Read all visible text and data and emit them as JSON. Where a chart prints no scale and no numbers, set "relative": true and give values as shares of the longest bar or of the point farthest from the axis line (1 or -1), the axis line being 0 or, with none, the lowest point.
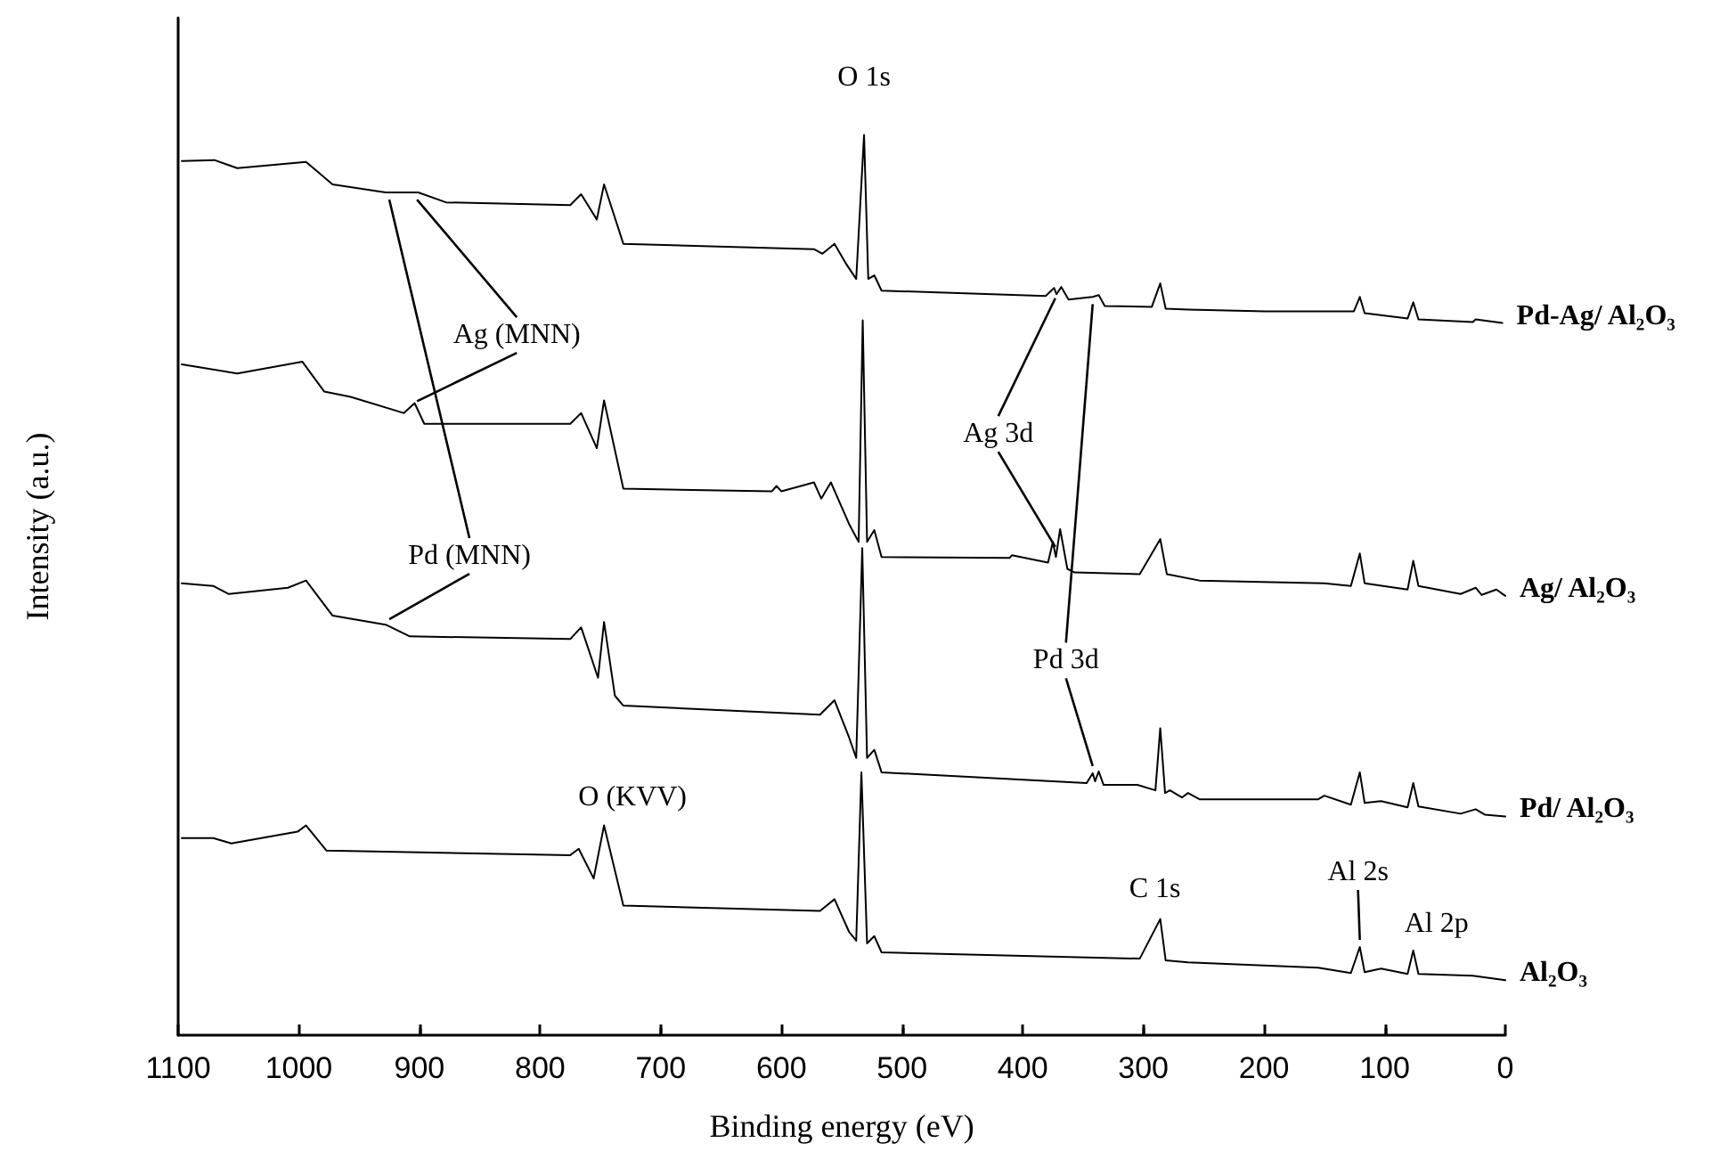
{
  "chart_data": {
    "type": "line",
    "xlabel": "Binding energy (eV)",
    "ylabel": "Intensity (a.u.)",
    "relative": true,
    "xlim": [
      1100,
      0
    ],
    "xticks": [
      1100,
      1000,
      900,
      800,
      700,
      600,
      500,
      400,
      300,
      200,
      100,
      0
    ],
    "grid": false,
    "legend": false,
    "marker": "none",
    "line_style": "solid",
    "series": [
      {
        "name": "Pd-Ag/ Al₂O₃",
        "color": "#000000",
        "x": [
          1097,
          1070,
          1051,
          994,
          972,
          928,
          901,
          878,
          775,
          766,
          753,
          747,
          731,
          573,
          566,
          556,
          546,
          538,
          531.5,
          528,
          523,
          517,
          381,
          374,
          372,
          368,
          362,
          342,
          337,
          332,
          293,
          286,
          281.5,
          263,
          199,
          125.5,
          120.6,
          116.6,
          81,
          76.3,
          72,
          27,
          24.6,
          2.5
        ],
        "values": [
          0.971,
          0.972,
          0.963,
          0.97,
          0.945,
          0.936,
          0.936,
          0.925,
          0.922,
          0.934,
          0.906,
          0.945,
          0.879,
          0.873,
          0.868,
          0.879,
          0.856,
          0.84,
          1.0,
          0.84,
          0.844,
          0.827,
          0.821,
          0.83,
          0.823,
          0.831,
          0.817,
          0.82,
          0.822,
          0.81,
          0.809,
          0.835,
          0.807,
          0.806,
          0.804,
          0.804,
          0.82,
          0.802,
          0.796,
          0.814,
          0.795,
          0.792,
          0.795,
          0.791
        ]
      },
      {
        "name": "Ag/ Al₂O₃",
        "color": "#000000",
        "x": [
          1097,
          1051,
          997,
          979,
          957,
          913,
          904,
          896,
          775,
          766,
          753,
          747,
          731,
          608,
          604,
          600,
          573,
          567,
          559,
          544,
          536,
          532.6,
          529,
          523,
          517,
          411,
          409,
          379,
          375,
          372.5,
          369,
          363,
          357,
          303,
          286,
          280.5,
          253.5,
          150,
          128,
          120.6,
          116.6,
          81,
          76.3,
          72,
          37,
          24.6,
          19.6,
          7.4,
          0
        ],
        "values": [
          0.745,
          0.735,
          0.748,
          0.715,
          0.709,
          0.691,
          0.702,
          0.679,
          0.679,
          0.691,
          0.652,
          0.705,
          0.607,
          0.604,
          0.61,
          0.604,
          0.614,
          0.596,
          0.614,
          0.568,
          0.548,
          0.794,
          0.548,
          0.561,
          0.531,
          0.53,
          0.533,
          0.525,
          0.548,
          0.531,
          0.562,
          0.518,
          0.514,
          0.512,
          0.551,
          0.512,
          0.505,
          0.502,
          0.499,
          0.535,
          0.502,
          0.495,
          0.527,
          0.499,
          0.49,
          0.497,
          0.489,
          0.495,
          0.488
        ]
      },
      {
        "name": "Pd/ Al₂O₃",
        "color": "#000000",
        "x": [
          1097,
          1071,
          1058,
          1009,
          994,
          972,
          928,
          908,
          775,
          766,
          752,
          747,
          738,
          731,
          568,
          556,
          544,
          538,
          533,
          529,
          523,
          517,
          347,
          342,
          340,
          337,
          333,
          305,
          290,
          286,
          282,
          278,
          268,
          263,
          253.5,
          155,
          150,
          128,
          120.6,
          116.6,
          103,
          81,
          76.3,
          72,
          37,
          24.6,
          17,
          0
        ],
        "values": [
          0.502,
          0.499,
          0.49,
          0.497,
          0.505,
          0.466,
          0.456,
          0.443,
          0.44,
          0.453,
          0.397,
          0.459,
          0.377,
          0.366,
          0.356,
          0.372,
          0.331,
          0.308,
          0.541,
          0.308,
          0.317,
          0.292,
          0.28,
          0.291,
          0.282,
          0.293,
          0.278,
          0.278,
          0.272,
          0.341,
          0.269,
          0.272,
          0.264,
          0.269,
          0.262,
          0.262,
          0.266,
          0.256,
          0.292,
          0.258,
          0.26,
          0.253,
          0.28,
          0.254,
          0.246,
          0.251,
          0.245,
          0.243
        ]
      },
      {
        "name": "Al₂O₃",
        "color": "#000000",
        "x": [
          1097,
          1071,
          1056,
          1001,
          994,
          977,
          775,
          768,
          755.6,
          747,
          731,
          568,
          556,
          544,
          538,
          533.7,
          529,
          523,
          517,
          303,
          286,
          281.5,
          263,
          155,
          128,
          120.6,
          116.6,
          103,
          81,
          76.3,
          72,
          27,
          0
        ],
        "values": [
          0.219,
          0.219,
          0.213,
          0.226,
          0.233,
          0.205,
          0.2,
          0.207,
          0.174,
          0.233,
          0.144,
          0.138,
          0.151,
          0.115,
          0.105,
          0.292,
          0.102,
          0.11,
          0.092,
          0.085,
          0.129,
          0.083,
          0.081,
          0.075,
          0.069,
          0.098,
          0.07,
          0.074,
          0.068,
          0.094,
          0.068,
          0.066,
          0.061
        ]
      }
    ],
    "annotations": [
      {
        "text": "O 1s",
        "x": 531.5,
        "y": 1.0
      },
      {
        "text": "Ag (MNN)",
        "x": 902,
        "y": 0.936
      },
      {
        "text": "Pd (MNN)",
        "x": 925,
        "y": 0.936
      },
      {
        "text": "Ag 3d",
        "x": 373,
        "y": 0.83
      },
      {
        "text": "Pd 3d",
        "x": 342,
        "y": 0.82
      },
      {
        "text": "O (KVV)",
        "x": 747,
        "y": 0.233
      },
      {
        "text": "C 1s",
        "x": 286,
        "y": 0.129
      },
      {
        "text": "Al 2s",
        "x": 120.6,
        "y": 0.098
      },
      {
        "text": "Al 2p",
        "x": 76.3,
        "y": 0.094
      }
    ]
  }
}
